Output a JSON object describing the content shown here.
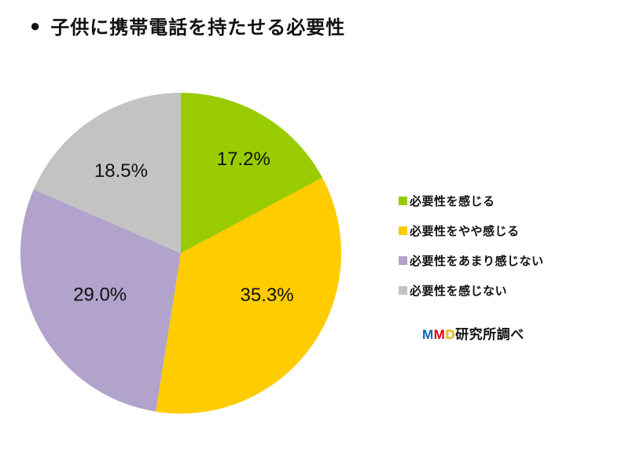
{
  "header": {
    "bullet": "●",
    "title": "子供に携帯電話を持たせる必要性"
  },
  "chart_data": {
    "type": "pie",
    "title": "子供に携帯電話を持たせる必要性",
    "start_angle_deg": 0,
    "direction": "clockwise",
    "value_suffix": "%",
    "legend_position": "right",
    "label_color": "#111111",
    "background_color": "#ffffff",
    "slices": [
      {
        "label": "必要性を感じる",
        "value": 17.2,
        "display_value": "17.2%",
        "color": "#99CC00"
      },
      {
        "label": "必要性をやや感じる",
        "value": 35.3,
        "display_value": "35.3%",
        "color": "#FFCC00"
      },
      {
        "label": "必要性をあまり感じない",
        "value": 29.0,
        "display_value": "29.0%",
        "color": "#B1A3CB"
      },
      {
        "label": "必要性を感じない",
        "value": 18.5,
        "display_value": "18.5%",
        "color": "#C3C3C3"
      }
    ]
  },
  "source": {
    "parts": [
      {
        "text": "M",
        "color": "#0068B7"
      },
      {
        "text": "M",
        "color": "#E60012"
      },
      {
        "text": "D",
        "color": "#FFC400"
      },
      {
        "text": "研究所調べ",
        "color": "#111111"
      }
    ]
  }
}
